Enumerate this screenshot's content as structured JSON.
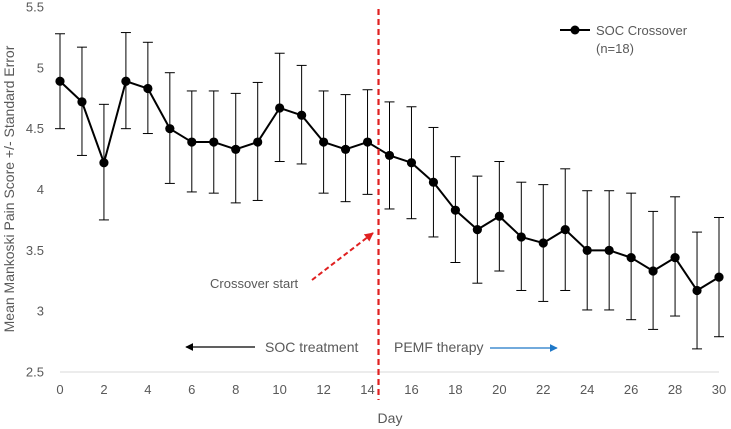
{
  "chart_data": {
    "type": "line",
    "title": "",
    "xlabel": "Day",
    "ylabel": "Mean Mankoski Pain Score +/- Standard Error",
    "xlim": [
      0,
      30
    ],
    "ylim": [
      2.5,
      5.5
    ],
    "xticks": [
      0,
      2,
      4,
      6,
      8,
      10,
      12,
      14,
      16,
      18,
      20,
      22,
      24,
      26,
      28,
      30
    ],
    "yticks": [
      2.5,
      3,
      3.5,
      4,
      4.5,
      5,
      5.5
    ],
    "grid": false,
    "legend": {
      "position": "top-right",
      "entries": [
        "SOC Crossover",
        "(n=18)"
      ]
    },
    "series": [
      {
        "name": "SOC Crossover",
        "x": [
          0,
          1,
          2,
          3,
          4,
          5,
          6,
          7,
          8,
          9,
          10,
          11,
          12,
          13,
          14,
          15,
          16,
          17,
          18,
          19,
          20,
          21,
          22,
          23,
          24,
          25,
          26,
          27,
          28,
          29,
          30
        ],
        "values": [
          4.89,
          4.72,
          4.22,
          4.89,
          4.83,
          4.5,
          4.39,
          4.39,
          4.33,
          4.39,
          4.67,
          4.61,
          4.39,
          4.33,
          4.39,
          4.28,
          4.22,
          4.06,
          3.83,
          3.67,
          3.78,
          3.61,
          3.56,
          3.67,
          3.5,
          3.5,
          3.44,
          3.33,
          3.44,
          3.17,
          3.28
        ],
        "upper": [
          5.28,
          5.17,
          4.7,
          5.29,
          5.21,
          4.96,
          4.81,
          4.81,
          4.79,
          4.88,
          5.12,
          5.02,
          4.81,
          4.78,
          4.82,
          4.72,
          4.68,
          4.51,
          4.27,
          4.11,
          4.23,
          4.06,
          4.04,
          4.17,
          3.99,
          3.99,
          3.97,
          3.82,
          3.94,
          3.65,
          3.77
        ],
        "lower": [
          4.5,
          4.28,
          3.75,
          4.5,
          4.46,
          4.05,
          3.98,
          3.97,
          3.89,
          3.91,
          4.23,
          4.21,
          3.97,
          3.9,
          3.96,
          3.84,
          3.76,
          3.61,
          3.4,
          3.23,
          3.33,
          3.17,
          3.08,
          3.17,
          3.01,
          3.01,
          2.93,
          2.85,
          2.96,
          2.69,
          2.79
        ]
      }
    ],
    "crossover_day": 14.5,
    "annotations": {
      "crossover": "Crossover start",
      "soc": "SOC treatment",
      "pemf": "PEMF therapy"
    }
  }
}
